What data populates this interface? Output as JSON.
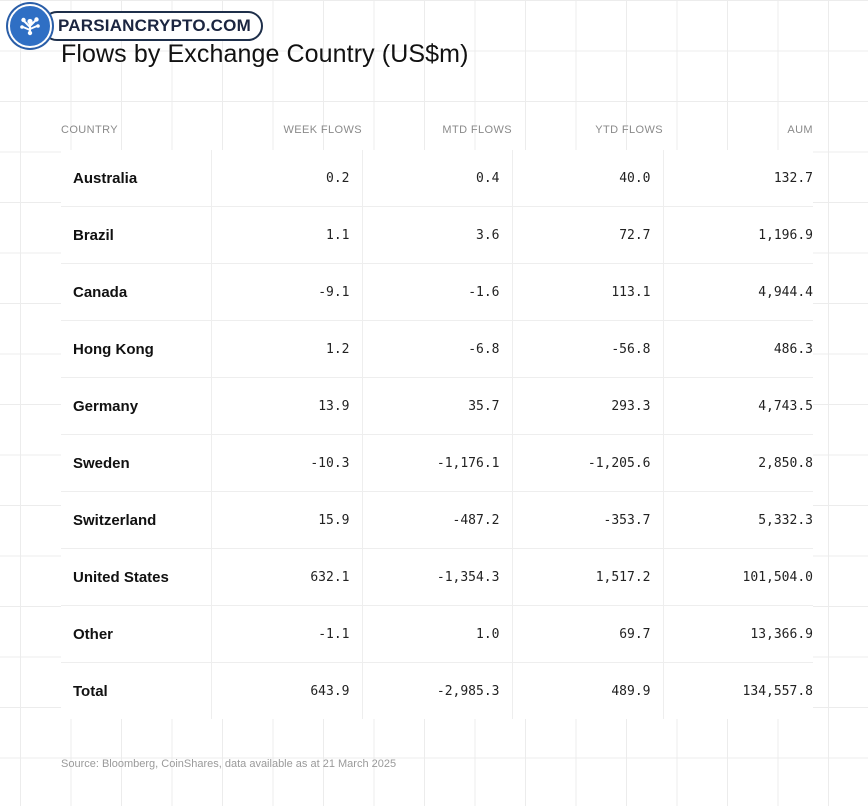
{
  "watermark": {
    "text": "PARSIANCRYPTO.COM",
    "logo_icon": "tree-icon",
    "colors": {
      "logo_bg": "#2f6fc4",
      "border": "#1e2f4a"
    }
  },
  "title": "Flows by Exchange Country (US$m)",
  "source": "Source: Bloomberg, CoinShares, data available as at 21 March 2025",
  "chart_data": {
    "type": "table",
    "title": "Flows by Exchange Country (US$m)",
    "columns": [
      "COUNTRY",
      "WEEK FLOWS",
      "MTD FLOWS",
      "YTD FLOWS",
      "AUM"
    ],
    "rows": [
      [
        "Australia",
        "0.2",
        "0.4",
        "40.0",
        "132.7"
      ],
      [
        "Brazil",
        "1.1",
        "3.6",
        "72.7",
        "1,196.9"
      ],
      [
        "Canada",
        "-9.1",
        "-1.6",
        "113.1",
        "4,944.4"
      ],
      [
        "Hong Kong",
        "1.2",
        "-6.8",
        "-56.8",
        "486.3"
      ],
      [
        "Germany",
        "13.9",
        "35.7",
        "293.3",
        "4,743.5"
      ],
      [
        "Sweden",
        "-10.3",
        "-1,176.1",
        "-1,205.6",
        "2,850.8"
      ],
      [
        "Switzerland",
        "15.9",
        "-487.2",
        "-353.7",
        "5,332.3"
      ],
      [
        "United States",
        "632.1",
        "-1,354.3",
        "1,517.2",
        "101,504.0"
      ],
      [
        "Other",
        "-1.1",
        "1.0",
        "69.7",
        "13,366.9"
      ],
      [
        "Total",
        "643.9",
        "-2,985.3",
        "489.9",
        "134,557.8"
      ]
    ]
  }
}
